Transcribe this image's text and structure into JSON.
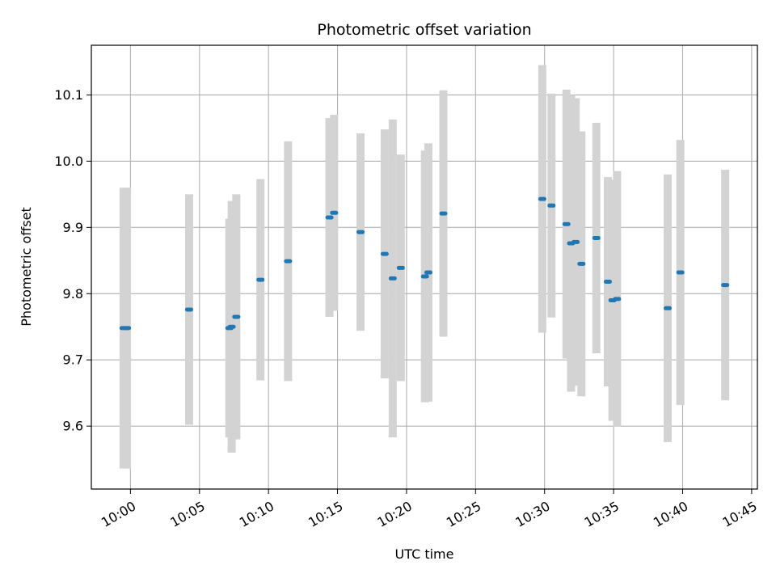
{
  "chart_data": {
    "type": "scatter",
    "title": "Photometric offset variation",
    "xlabel": "UTC time",
    "ylabel": "Photometric offset",
    "xlim": [
      "09:57:10",
      "10:45:25"
    ],
    "ylim": [
      9.505,
      10.175
    ],
    "x_ticks": [
      "10:00",
      "10:05",
      "10:10",
      "10:15",
      "10:20",
      "10:25",
      "10:30",
      "10:35",
      "10:40",
      "10:45"
    ],
    "y_ticks": [
      9.6,
      9.7,
      9.8,
      9.9,
      10.0,
      10.1
    ],
    "grid": true,
    "marker_color": "#1f77b4",
    "errorbar_color": "#d3d3d3",
    "points": [
      {
        "time": "09:59:30",
        "value": 9.748,
        "err": 0.212
      },
      {
        "time": "09:59:45",
        "value": 9.748,
        "err": 0.212
      },
      {
        "time": "10:04:15",
        "value": 9.776,
        "err": 0.174
      },
      {
        "time": "10:07:10",
        "value": 9.748,
        "err": 0.165
      },
      {
        "time": "10:07:20",
        "value": 9.75,
        "err": 0.19
      },
      {
        "time": "10:07:40",
        "value": 9.765,
        "err": 0.185
      },
      {
        "time": "10:09:25",
        "value": 9.821,
        "err": 0.152
      },
      {
        "time": "10:11:25",
        "value": 9.849,
        "err": 0.181
      },
      {
        "time": "10:14:25",
        "value": 9.915,
        "err": 0.15
      },
      {
        "time": "10:14:45",
        "value": 9.922,
        "err": 0.148
      },
      {
        "time": "10:16:40",
        "value": 9.893,
        "err": 0.149
      },
      {
        "time": "10:18:25",
        "value": 9.86,
        "err": 0.188
      },
      {
        "time": "10:19:00",
        "value": 9.823,
        "err": 0.24
      },
      {
        "time": "10:19:35",
        "value": 9.839,
        "err": 0.171
      },
      {
        "time": "10:21:20",
        "value": 9.826,
        "err": 0.19
      },
      {
        "time": "10:21:35",
        "value": 9.832,
        "err": 0.195
      },
      {
        "time": "10:22:40",
        "value": 9.921,
        "err": 0.186
      },
      {
        "time": "10:29:50",
        "value": 9.943,
        "err": 0.202
      },
      {
        "time": "10:30:30",
        "value": 9.933,
        "err": 0.169
      },
      {
        "time": "10:31:35",
        "value": 9.905,
        "err": 0.203
      },
      {
        "time": "10:31:55",
        "value": 9.876,
        "err": 0.224
      },
      {
        "time": "10:32:15",
        "value": 9.878,
        "err": 0.217
      },
      {
        "time": "10:32:40",
        "value": 9.845,
        "err": 0.2
      },
      {
        "time": "10:33:45",
        "value": 9.884,
        "err": 0.174
      },
      {
        "time": "10:34:35",
        "value": 9.818,
        "err": 0.158
      },
      {
        "time": "10:34:55",
        "value": 9.79,
        "err": 0.182
      },
      {
        "time": "10:35:15",
        "value": 9.792,
        "err": 0.193
      },
      {
        "time": "10:38:55",
        "value": 9.778,
        "err": 0.202
      },
      {
        "time": "10:39:50",
        "value": 9.832,
        "err": 0.2
      },
      {
        "time": "10:43:05",
        "value": 9.813,
        "err": 0.174
      }
    ]
  }
}
